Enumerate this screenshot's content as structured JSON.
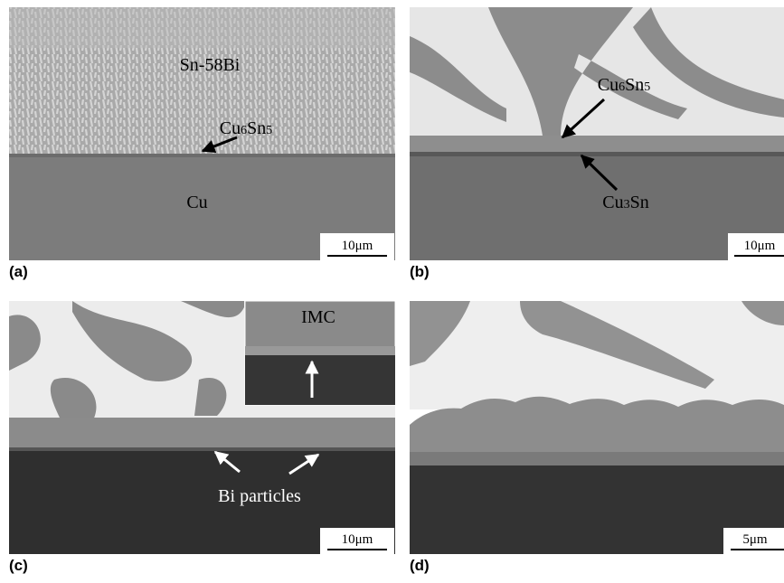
{
  "panels": [
    {
      "label": "(a)",
      "annotations": [
        "Sn-58Bi",
        "Cu6Sn5",
        "Cu"
      ],
      "scale_bar": "10μm"
    },
    {
      "label": "(b)",
      "annotations": [
        "Cu6Sn5",
        "Cu3Sn"
      ],
      "scale_bar": "10μm"
    },
    {
      "label": "(c)",
      "annotations": [
        "IMC",
        "Bi particles"
      ],
      "scale_bar": "10μm"
    },
    {
      "label": "(d)",
      "annotations": [],
      "scale_bar": "5μm"
    }
  ]
}
